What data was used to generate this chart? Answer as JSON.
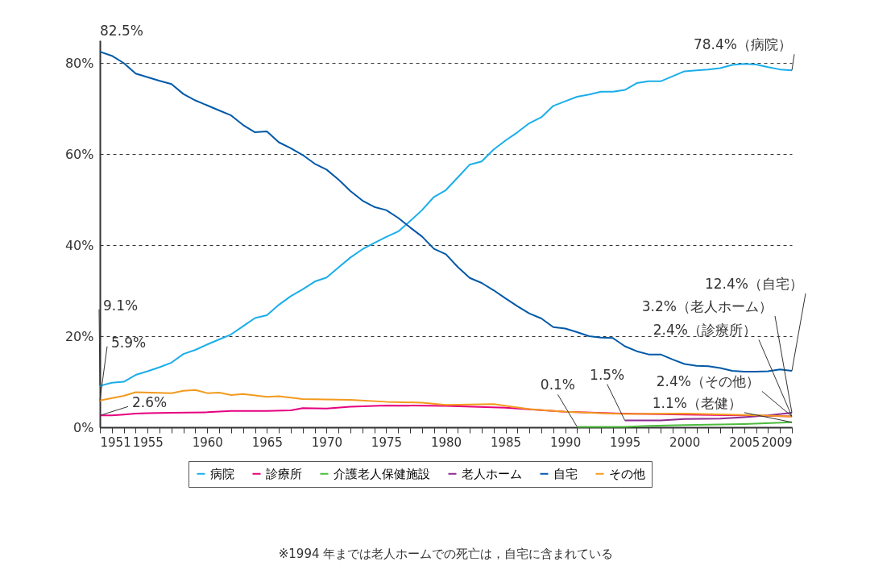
{
  "chart_data": {
    "type": "line",
    "x": [
      1951,
      1952,
      1953,
      1954,
      1955,
      1956,
      1957,
      1958,
      1959,
      1960,
      1961,
      1962,
      1963,
      1964,
      1965,
      1966,
      1967,
      1968,
      1969,
      1970,
      1971,
      1972,
      1973,
      1974,
      1975,
      1976,
      1977,
      1978,
      1979,
      1980,
      1981,
      1982,
      1983,
      1984,
      1985,
      1986,
      1987,
      1988,
      1989,
      1990,
      1991,
      1992,
      1993,
      1994,
      1995,
      1996,
      1997,
      1998,
      1999,
      2000,
      2001,
      2002,
      2003,
      2004,
      2005,
      2006,
      2007,
      2008,
      2009
    ],
    "series": [
      {
        "name": "病院",
        "color": "#1aaeea",
        "values": [
          9.1,
          9.8,
          10.0,
          11.5,
          12.3,
          13.2,
          14.2,
          16.1,
          17.0,
          18.2,
          19.3,
          20.4,
          22.2,
          24.0,
          24.6,
          26.9,
          28.8,
          30.3,
          32.0,
          32.9,
          35.1,
          37.3,
          39.1,
          40.5,
          41.8,
          43.0,
          45.3,
          47.7,
          50.6,
          52.1,
          54.9,
          57.7,
          58.4,
          61.0,
          63.0,
          64.8,
          66.8,
          68.1,
          70.6,
          71.6,
          72.6,
          73.1,
          73.7,
          73.7,
          74.1,
          75.6,
          76.0,
          76.0,
          77.1,
          78.2,
          78.4,
          78.6,
          78.9,
          79.6,
          79.8,
          79.7,
          79.1,
          78.6,
          78.4
        ]
      },
      {
        "name": "診療所",
        "color": "#e6007e",
        "x": [
          1951,
          1952,
          1953,
          1954,
          1955,
          1957,
          1960,
          1962,
          1965,
          1967,
          1968,
          1970,
          1972,
          1975,
          1980,
          1985,
          1990,
          1995,
          2000,
          2005,
          2009
        ],
        "values": [
          2.6,
          2.6,
          2.8,
          3.0,
          3.1,
          3.2,
          3.3,
          3.6,
          3.6,
          3.7,
          4.2,
          4.1,
          4.5,
          4.8,
          4.7,
          4.3,
          3.4,
          3.0,
          2.8,
          2.6,
          2.4
        ]
      },
      {
        "name": "介護老人保健施設",
        "color": "#4cbb3c",
        "x": [
          1991,
          1995,
          1997,
          2000,
          2003,
          2005,
          2009
        ],
        "values": [
          0.1,
          0.1,
          0.3,
          0.5,
          0.6,
          0.7,
          1.1
        ]
      },
      {
        "name": "老人ホーム",
        "color": "#8e2b8f",
        "x": [
          1995,
          1998,
          2000,
          2003,
          2005,
          2007,
          2009
        ],
        "values": [
          1.5,
          1.5,
          1.8,
          1.9,
          2.2,
          2.6,
          3.2
        ]
      },
      {
        "name": "自宅",
        "color": "#0059a8",
        "values": [
          82.5,
          81.6,
          80.0,
          77.7,
          76.9,
          76.1,
          75.4,
          73.2,
          71.8,
          70.7,
          69.6,
          68.5,
          66.4,
          64.8,
          65.0,
          62.6,
          61.3,
          59.8,
          57.9,
          56.6,
          54.4,
          51.9,
          49.8,
          48.4,
          47.7,
          46.0,
          43.9,
          41.9,
          39.2,
          38.0,
          35.2,
          32.8,
          31.7,
          30.1,
          28.3,
          26.6,
          25.0,
          23.9,
          22.0,
          21.7,
          20.9,
          20.0,
          19.7,
          19.6,
          17.8,
          16.7,
          16.0,
          16.0,
          14.9,
          13.9,
          13.5,
          13.4,
          13.0,
          12.4,
          12.2,
          12.2,
          12.3,
          12.7,
          12.4
        ]
      },
      {
        "name": "その他",
        "color": "#f39a1e",
        "x": [
          1951,
          1953,
          1954,
          1957,
          1958,
          1959,
          1960,
          1961,
          1962,
          1963,
          1965,
          1966,
          1968,
          1972,
          1975,
          1978,
          1980,
          1984,
          1987,
          1990,
          1995,
          2000,
          2005,
          2009
        ],
        "values": [
          5.9,
          6.9,
          7.7,
          7.5,
          8.0,
          8.2,
          7.5,
          7.6,
          7.1,
          7.3,
          6.7,
          6.8,
          6.2,
          6.0,
          5.6,
          5.4,
          4.9,
          5.1,
          4.0,
          3.4,
          2.9,
          3.0,
          2.7,
          2.4
        ]
      }
    ],
    "xlim": [
      1951,
      2009
    ],
    "xticks": [
      1951,
      {
        "value": 1952,
        "label": null
      },
      {
        "value": 1953,
        "label": null
      },
      {
        "value": 1954,
        "label": null
      },
      1955,
      {
        "value": 1956,
        "label": null
      },
      {
        "value": 1957,
        "label": null
      },
      {
        "value": 1958,
        "label": null
      },
      {
        "value": 1959,
        "label": null
      },
      1960,
      {
        "value": 1961,
        "label": null
      },
      {
        "value": 1962,
        "label": null
      },
      {
        "value": 1963,
        "label": null
      },
      {
        "value": 1964,
        "label": null
      },
      1965,
      {
        "value": 1966,
        "label": null
      },
      {
        "value": 1967,
        "label": null
      },
      {
        "value": 1968,
        "label": null
      },
      {
        "value": 1969,
        "label": null
      },
      1970,
      {
        "value": 1971,
        "label": null
      },
      {
        "value": 1972,
        "label": null
      },
      {
        "value": 1973,
        "label": null
      },
      {
        "value": 1974,
        "label": null
      },
      1975,
      {
        "value": 1976,
        "label": null
      },
      {
        "value": 1977,
        "label": null
      },
      {
        "value": 1978,
        "label": null
      },
      {
        "value": 1979,
        "label": null
      },
      1980,
      {
        "value": 1981,
        "label": null
      },
      {
        "value": 1982,
        "label": null
      },
      {
        "value": 1983,
        "label": null
      },
      {
        "value": 1984,
        "label": null
      },
      1985,
      {
        "value": 1986,
        "label": null
      },
      {
        "value": 1987,
        "label": null
      },
      {
        "value": 1988,
        "label": null
      },
      {
        "value": 1989,
        "label": null
      },
      1990,
      {
        "value": 1991,
        "label": null
      },
      {
        "value": 1992,
        "label": null
      },
      {
        "value": 1993,
        "label": null
      },
      {
        "value": 1994,
        "label": null
      },
      1995,
      {
        "value": 1996,
        "label": null
      },
      {
        "value": 1997,
        "label": null
      },
      {
        "value": 1998,
        "label": null
      },
      {
        "value": 1999,
        "label": null
      },
      2000,
      {
        "value": 2001,
        "label": null
      },
      {
        "value": 2002,
        "label": null
      },
      {
        "value": 2003,
        "label": null
      },
      {
        "value": 2004,
        "label": null
      },
      2005,
      {
        "value": 2006,
        "label": null
      },
      {
        "value": 2007,
        "label": null
      },
      {
        "value": 2008,
        "label": null
      },
      2009
    ],
    "ylim": [
      0,
      85
    ],
    "yticks": [
      {
        "value": 0,
        "label": "0%"
      },
      {
        "value": 20,
        "label": "20%"
      },
      {
        "value": 40,
        "label": "40%"
      },
      {
        "value": 60,
        "label": "60%"
      },
      {
        "value": 80,
        "label": "80%"
      }
    ],
    "grid": "y",
    "legend": "bottom",
    "marker": "none",
    "line_style": "solid",
    "annotations": [
      {
        "text": "82.5%",
        "x": 1951,
        "y": 82.5
      },
      {
        "text": "9.1%",
        "x": 1951,
        "y": 9.1
      },
      {
        "text": "5.9%",
        "x": 1951,
        "y": 5.9
      },
      {
        "text": "2.6%",
        "x": 1951,
        "y": 2.6
      },
      {
        "text": "78.4%（病院）",
        "x": 2009,
        "y": 78.4
      },
      {
        "text": "12.4%（自宅）",
        "x": 2009,
        "y": 12.4
      },
      {
        "text": "3.2%（老人ホーム）",
        "x": 2009,
        "y": 3.2
      },
      {
        "text": "2.4%（診療所）",
        "x": 2009,
        "y": 2.4
      },
      {
        "text": "2.4%（その他）",
        "x": 2009,
        "y": 2.4
      },
      {
        "text": "1.1%（老健）",
        "x": 2009,
        "y": 1.1
      },
      {
        "text": "0.1%",
        "x": 1991,
        "y": 0.1
      },
      {
        "text": "1.5%",
        "x": 1995,
        "y": 1.5
      },
      "※1994 年までは老人ホームでの死亡は，自宅に含まれている"
    ]
  }
}
